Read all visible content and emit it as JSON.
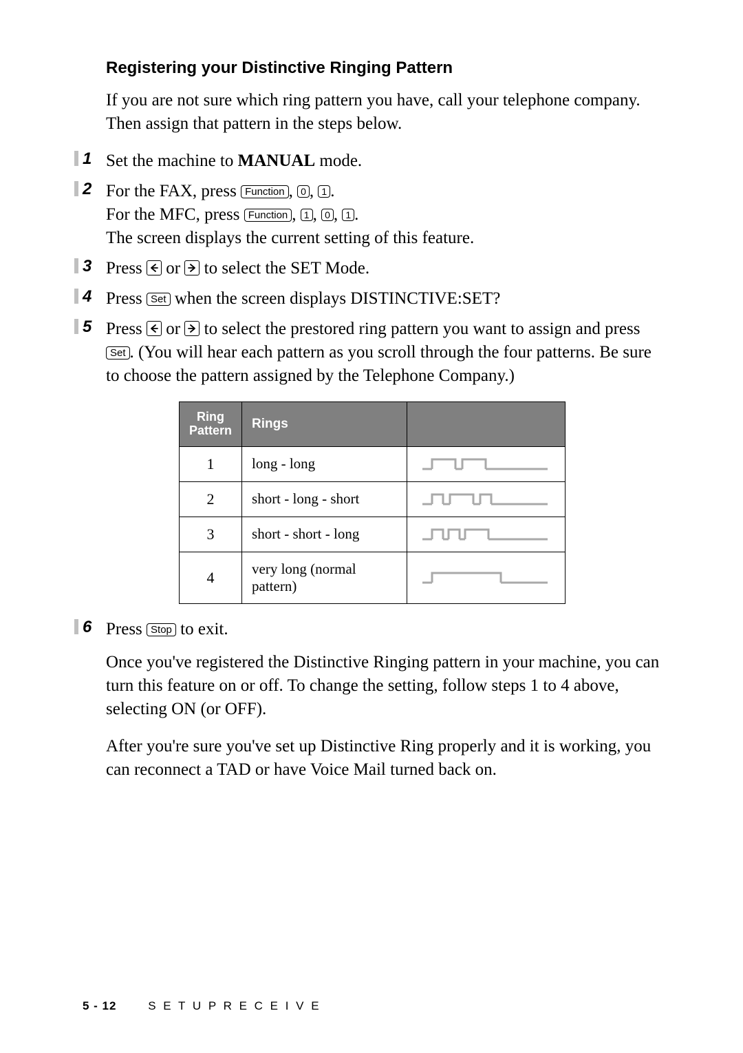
{
  "heading": "Registering your Distinctive Ringing Pattern",
  "intro": "If you are not sure which ring pattern you have, call your telephone company. Then assign that pattern in the steps below.",
  "steps": {
    "s1": {
      "num": "1",
      "text_a": "Set the machine to ",
      "manual": "MANUAL",
      "text_b": " mode."
    },
    "s2": {
      "num": "2",
      "line1_a": "For the FAX, press ",
      "line2_a": "For the MFC, press ",
      "line3": "The screen displays the current setting of this feature.",
      "key_function": "Function",
      "key_0": "0",
      "key_1": "1"
    },
    "s3": {
      "num": "3",
      "text_a": "Press ",
      "text_b": " or ",
      "text_c": " to select the SET Mode."
    },
    "s4": {
      "num": "4",
      "text_a": "Press ",
      "key_set": "Set",
      "text_b": " when the screen displays DISTINCTIVE:SET?"
    },
    "s5": {
      "num": "5",
      "text_a": "Press ",
      "text_b": " or ",
      "text_c": " to select the prestored ring pattern you want to assign and press ",
      "key_set": "Set",
      "text_d": ". (You will hear each pattern as you scroll through the four patterns. Be sure to choose the pattern assigned by the Telephone Company.)"
    },
    "s6": {
      "num": "6",
      "text_a": "Press ",
      "key_stop": "Stop",
      "text_b": " to exit."
    }
  },
  "table": {
    "headers": {
      "pattern_a": "Ring",
      "pattern_b": "Pattern",
      "rings": "Rings"
    },
    "rows": [
      {
        "num": "1",
        "desc": "long - long",
        "wave": "ll"
      },
      {
        "num": "2",
        "desc": "short - long - short",
        "wave": "sls"
      },
      {
        "num": "3",
        "desc": "short - short - long",
        "wave": "ssl"
      },
      {
        "num": "4",
        "desc": "very long (normal pattern)",
        "wave": "vl"
      }
    ],
    "wave_color": "#a9a9a9",
    "wave_stroke": 3
  },
  "after1": "Once you've registered the Distinctive Ringing pattern in your machine, you can turn this feature on or off.  To change the setting, follow steps 1 to 4 above, selecting ON (or OFF).",
  "after2": "After you're sure you've set up Distinctive Ring properly and it is working, you can reconnect a TAD or have Voice Mail turned back on.",
  "footer": {
    "page": "5 - 12",
    "section": "SETUP RECEIVE"
  }
}
